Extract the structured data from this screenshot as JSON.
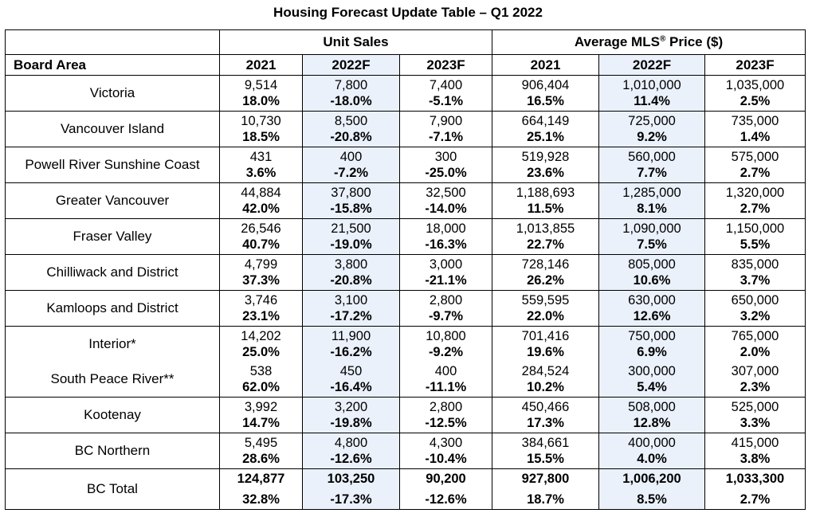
{
  "title": "Housing Forecast Update Table – Q1 2022",
  "chart_data": {
    "type": "table",
    "group_headers": {
      "unit_sales": "Unit Sales",
      "avg_price": "Average MLS® Price ($)"
    },
    "row_header": "Board Area",
    "columns": [
      "2021",
      "2022F",
      "2023F",
      "2021",
      "2022F",
      "2023F"
    ],
    "rows": [
      {
        "area": "Victoria",
        "values": [
          "9,514",
          "7,800",
          "7,400",
          "906,404",
          "1,010,000",
          "1,035,000"
        ],
        "changes": [
          "18.0%",
          "-18.0%",
          "-5.1%",
          "16.5%",
          "11.4%",
          "2.5%"
        ]
      },
      {
        "area": "Vancouver Island",
        "values": [
          "10,730",
          "8,500",
          "7,900",
          "664,149",
          "725,000",
          "735,000"
        ],
        "changes": [
          "18.5%",
          "-20.8%",
          "-7.1%",
          "25.1%",
          "9.2%",
          "1.4%"
        ]
      },
      {
        "area": "Powell River Sunshine Coast",
        "values": [
          "431",
          "400",
          "300",
          "519,928",
          "560,000",
          "575,000"
        ],
        "changes": [
          "3.6%",
          "-7.2%",
          "-25.0%",
          "23.6%",
          "7.7%",
          "2.7%"
        ]
      },
      {
        "area": "Greater Vancouver",
        "values": [
          "44,884",
          "37,800",
          "32,500",
          "1,188,693",
          "1,285,000",
          "1,320,000"
        ],
        "changes": [
          "42.0%",
          "-15.8%",
          "-14.0%",
          "11.5%",
          "8.1%",
          "2.7%"
        ]
      },
      {
        "area": "Fraser Valley",
        "values": [
          "26,546",
          "21,500",
          "18,000",
          "1,013,855",
          "1,090,000",
          "1,150,000"
        ],
        "changes": [
          "40.7%",
          "-19.0%",
          "-16.3%",
          "22.7%",
          "7.5%",
          "5.5%"
        ]
      },
      {
        "area": "Chilliwack and District",
        "values": [
          "4,799",
          "3,800",
          "3,000",
          "728,146",
          "805,000",
          "835,000"
        ],
        "changes": [
          "37.3%",
          "-20.8%",
          "-21.1%",
          "26.2%",
          "10.6%",
          "3.7%"
        ]
      },
      {
        "area": "Kamloops and District",
        "values": [
          "3,746",
          "3,100",
          "2,800",
          "559,595",
          "630,000",
          "650,000"
        ],
        "changes": [
          "23.1%",
          "-17.2%",
          "-9.7%",
          "22.0%",
          "12.6%",
          "3.2%"
        ]
      },
      {
        "area": "Interior*",
        "values": [
          "14,202",
          "11,900",
          "10,800",
          "701,416",
          "750,000",
          "765,000"
        ],
        "changes": [
          "25.0%",
          "-16.2%",
          "-9.2%",
          "19.6%",
          "6.9%",
          "2.0%"
        ]
      },
      {
        "area": "South Peace River**",
        "values": [
          "538",
          "450",
          "400",
          "284,524",
          "300,000",
          "307,000"
        ],
        "changes": [
          "62.0%",
          "-16.4%",
          "-11.1%",
          "10.2%",
          "5.4%",
          "2.3%"
        ]
      },
      {
        "area": "Kootenay",
        "values": [
          "3,992",
          "3,200",
          "2,800",
          "450,466",
          "508,000",
          "525,000"
        ],
        "changes": [
          "14.7%",
          "-19.8%",
          "-12.5%",
          "17.3%",
          "12.8%",
          "3.3%"
        ]
      },
      {
        "area": "BC Northern",
        "values": [
          "5,495",
          "4,800",
          "4,300",
          "384,661",
          "400,000",
          "415,000"
        ],
        "changes": [
          "28.6%",
          "-12.6%",
          "-10.4%",
          "15.5%",
          "4.0%",
          "3.8%"
        ]
      },
      {
        "area": "BC Total",
        "values": [
          "124,877",
          "103,250",
          "90,200",
          "927,800",
          "1,006,200",
          "1,033,300"
        ],
        "changes": [
          "32.8%",
          "-17.3%",
          "-12.6%",
          "18.7%",
          "8.5%",
          "2.7%"
        ]
      }
    ]
  },
  "colors": {
    "shade": "#eaf1fb",
    "border": "#000000"
  }
}
